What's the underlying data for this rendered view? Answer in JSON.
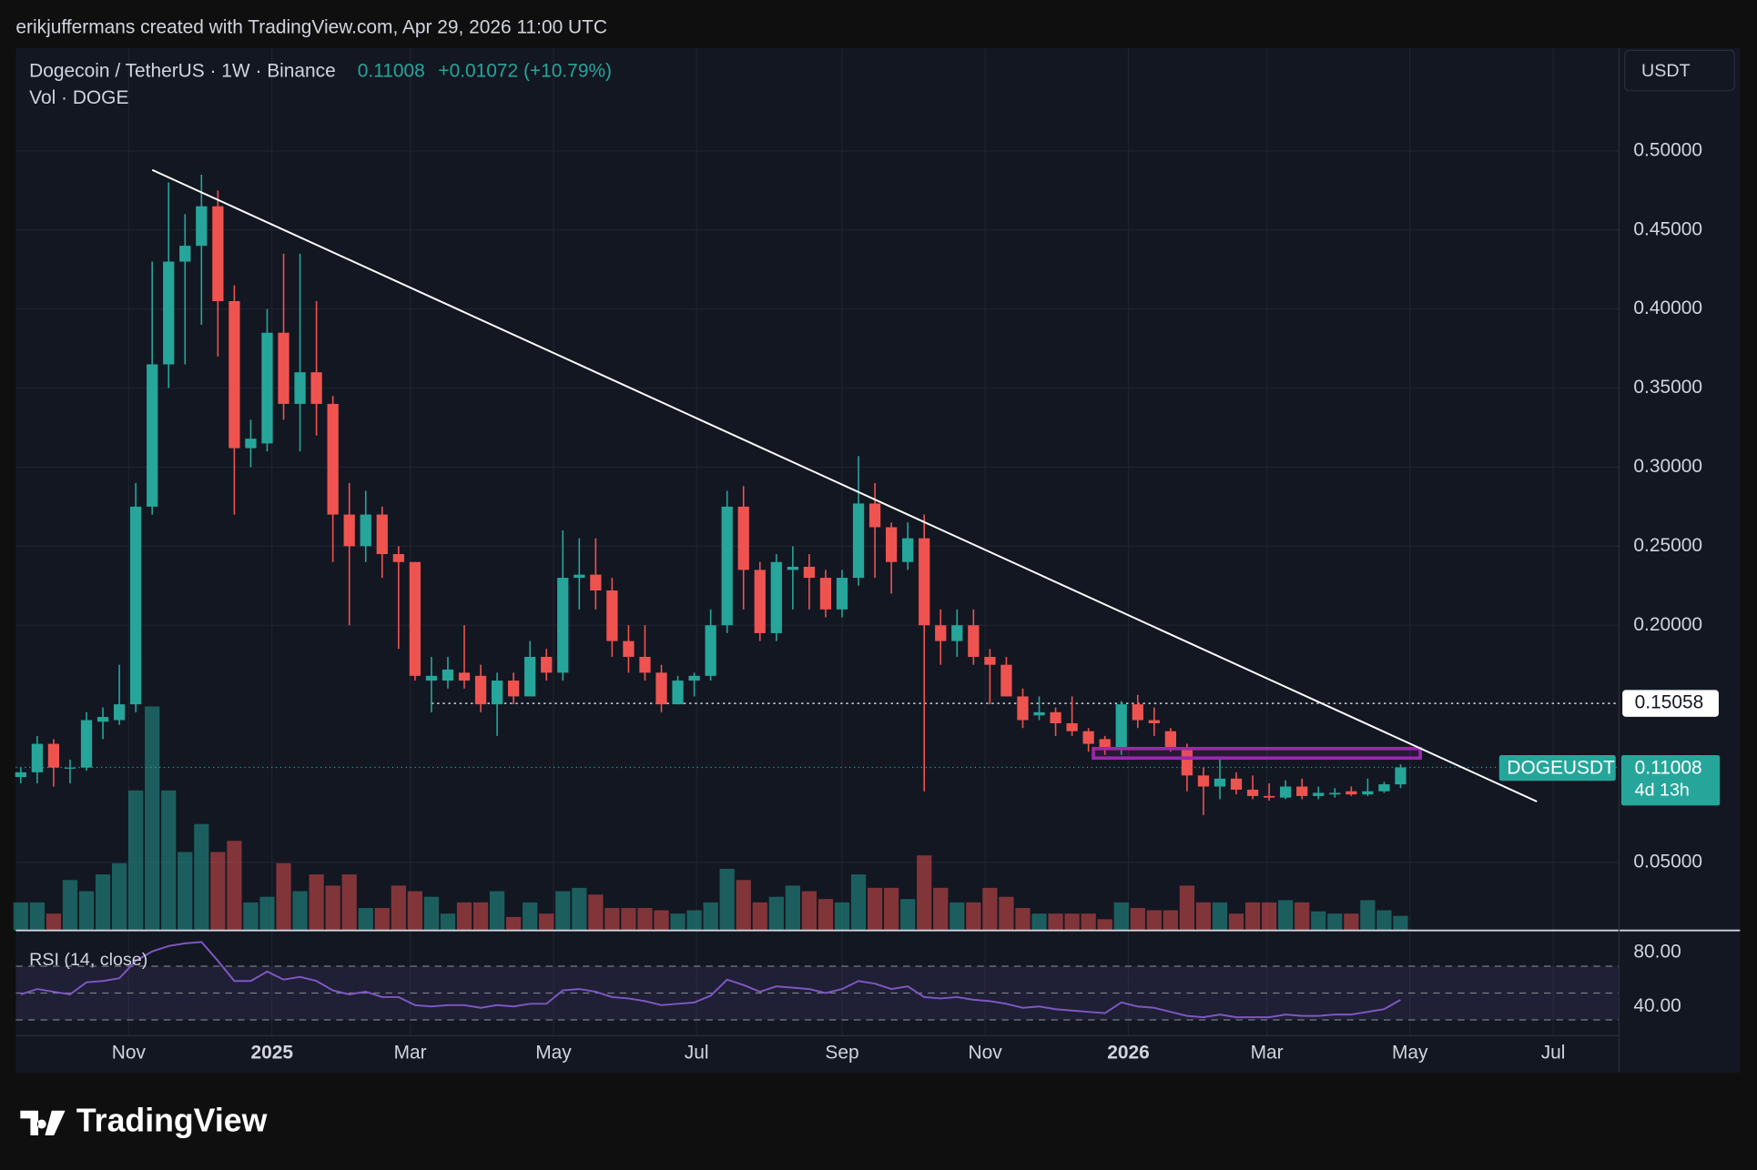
{
  "header": {
    "attribution": "erikjuffermans created with TradingView.com, Apr 29, 2026 11:00 UTC",
    "symbol": "Dogecoin / TetherUS · 1W · Binance",
    "change": "+0.01072 (+10.79%)",
    "volume_label": "Vol · DOGE",
    "currency": "USDT",
    "brand": "TradingView"
  },
  "chart_data": [
    {
      "type": "candlestick",
      "up_color": "#26a69a",
      "down_color": "#ef5350",
      "xlim": [
        -0.3,
        97.3
      ],
      "xticks": [
        {
          "value": 6.57,
          "label": "Nov"
        },
        {
          "value": 15.29,
          "label": "2025"
        },
        {
          "value": 23.71,
          "label": "Mar"
        },
        {
          "value": 32.43,
          "label": "May"
        },
        {
          "value": 41.14,
          "label": "Jul"
        },
        {
          "value": 50.0,
          "label": "Sep"
        },
        {
          "value": 58.71,
          "label": "Nov"
        },
        {
          "value": 67.43,
          "label": "2026"
        },
        {
          "value": 75.86,
          "label": "Mar"
        },
        {
          "value": 84.57,
          "label": "May"
        },
        {
          "value": 93.29,
          "label": "Jul"
        }
      ],
      "ylim": [
        0.007,
        0.565
      ],
      "yticks": [
        {
          "value": 0.05,
          "label": "0.05000"
        },
        {
          "value": 0.2,
          "label": "0.20000"
        },
        {
          "value": 0.25,
          "label": "0.25000"
        },
        {
          "value": 0.3,
          "label": "0.30000"
        },
        {
          "value": 0.35,
          "label": "0.35000"
        },
        {
          "value": 0.4,
          "label": "0.40000"
        },
        {
          "value": 0.45,
          "label": "0.45000"
        },
        {
          "value": 0.5,
          "label": "0.50000"
        }
      ],
      "grid": true,
      "open": [
        0.104,
        0.107,
        0.125,
        0.11,
        0.11,
        0.139,
        0.14,
        0.15,
        0.275,
        0.365,
        0.43,
        0.44,
        0.465,
        0.405,
        0.312,
        0.315,
        0.385,
        0.34,
        0.36,
        0.34,
        0.27,
        0.25,
        0.27,
        0.245,
        0.24,
        0.165,
        0.165,
        0.17,
        0.168,
        0.15,
        0.165,
        0.155,
        0.18,
        0.17,
        0.23,
        0.232,
        0.222,
        0.19,
        0.18,
        0.17,
        0.15,
        0.165,
        0.168,
        0.2,
        0.275,
        0.235,
        0.195,
        0.235,
        0.237,
        0.23,
        0.21,
        0.23,
        0.277,
        0.262,
        0.24,
        0.255,
        0.2,
        0.19,
        0.2,
        0.18,
        0.175,
        0.155,
        0.143,
        0.145,
        0.138,
        0.133,
        0.128,
        0.122,
        0.15,
        0.14,
        0.133,
        0.122,
        0.105,
        0.098,
        0.103,
        0.096,
        0.092,
        0.091,
        0.098,
        0.092,
        0.093,
        0.095,
        0.093,
        0.095,
        0.09936
      ],
      "high": [
        0.11,
        0.13,
        0.128,
        0.115,
        0.145,
        0.148,
        0.175,
        0.29,
        0.43,
        0.48,
        0.46,
        0.485,
        0.475,
        0.415,
        0.33,
        0.4,
        0.435,
        0.435,
        0.405,
        0.345,
        0.29,
        0.285,
        0.275,
        0.25,
        0.24,
        0.18,
        0.18,
        0.2,
        0.175,
        0.17,
        0.17,
        0.19,
        0.185,
        0.26,
        0.255,
        0.255,
        0.23,
        0.2,
        0.2,
        0.175,
        0.168,
        0.17,
        0.21,
        0.285,
        0.288,
        0.24,
        0.245,
        0.25,
        0.245,
        0.235,
        0.235,
        0.307,
        0.29,
        0.265,
        0.265,
        0.27,
        0.21,
        0.21,
        0.21,
        0.185,
        0.18,
        0.16,
        0.155,
        0.148,
        0.155,
        0.135,
        0.13,
        0.152,
        0.156,
        0.148,
        0.135,
        0.125,
        0.11,
        0.115,
        0.107,
        0.105,
        0.1,
        0.102,
        0.103,
        0.098,
        0.097,
        0.098,
        0.103,
        0.101,
        0.112
      ],
      "low": [
        0.1,
        0.1,
        0.098,
        0.1,
        0.108,
        0.128,
        0.137,
        0.145,
        0.27,
        0.35,
        0.365,
        0.39,
        0.37,
        0.27,
        0.3,
        0.31,
        0.33,
        0.31,
        0.32,
        0.24,
        0.2,
        0.24,
        0.23,
        0.185,
        0.165,
        0.145,
        0.16,
        0.16,
        0.145,
        0.13,
        0.15,
        0.155,
        0.165,
        0.165,
        0.21,
        0.21,
        0.18,
        0.17,
        0.165,
        0.145,
        0.15,
        0.155,
        0.165,
        0.195,
        0.21,
        0.19,
        0.19,
        0.21,
        0.21,
        0.205,
        0.205,
        0.225,
        0.23,
        0.22,
        0.235,
        0.095,
        0.175,
        0.18,
        0.175,
        0.15,
        0.155,
        0.135,
        0.14,
        0.13,
        0.13,
        0.12,
        0.118,
        0.118,
        0.135,
        0.13,
        0.12,
        0.095,
        0.08,
        0.09,
        0.093,
        0.09,
        0.089,
        0.09,
        0.09,
        0.09,
        0.091,
        0.092,
        0.092,
        0.094,
        0.097
      ],
      "close": [
        0.107,
        0.125,
        0.11,
        0.11,
        0.14,
        0.142,
        0.15,
        0.275,
        0.365,
        0.43,
        0.44,
        0.465,
        0.405,
        0.312,
        0.318,
        0.385,
        0.34,
        0.36,
        0.34,
        0.27,
        0.25,
        0.27,
        0.245,
        0.24,
        0.168,
        0.168,
        0.172,
        0.165,
        0.15,
        0.165,
        0.155,
        0.18,
        0.17,
        0.23,
        0.232,
        0.222,
        0.19,
        0.18,
        0.17,
        0.15,
        0.165,
        0.168,
        0.2,
        0.275,
        0.235,
        0.195,
        0.24,
        0.237,
        0.23,
        0.21,
        0.23,
        0.277,
        0.262,
        0.24,
        0.255,
        0.2,
        0.19,
        0.2,
        0.18,
        0.175,
        0.155,
        0.14,
        0.145,
        0.138,
        0.133,
        0.125,
        0.122,
        0.15,
        0.14,
        0.138,
        0.122,
        0.105,
        0.098,
        0.103,
        0.096,
        0.092,
        0.091,
        0.098,
        0.092,
        0.094,
        0.094,
        0.093,
        0.095,
        0.0994,
        0.11008
      ],
      "volume": [
        5,
        5,
        3,
        9,
        7,
        10,
        12,
        25,
        40,
        25,
        14,
        19,
        14,
        16,
        5,
        6,
        12,
        7,
        10,
        8,
        10,
        4,
        4,
        8,
        7,
        6,
        3,
        5,
        5,
        7,
        2.4,
        5,
        3,
        7,
        7.6,
        6.4,
        4,
        4,
        4,
        3.6,
        3,
        3.6,
        5,
        11,
        9,
        5,
        6,
        8,
        7,
        5.6,
        5,
        10,
        7.6,
        7.6,
        5.6,
        13.4,
        7.6,
        5,
        5,
        7.6,
        6,
        4,
        3,
        3,
        3,
        3,
        2,
        5,
        4,
        3.6,
        3.6,
        8,
        5,
        5,
        3,
        5,
        5,
        5.4,
        5,
        3.4,
        3,
        3,
        5.4,
        3.6,
        2.6
      ],
      "trendline": {
        "color": "#ffffff",
        "x": [
          8,
          92.3
        ],
        "y": [
          0.488,
          0.0885
        ]
      },
      "zone": {
        "color": "#9c27b0",
        "x": [
          65.3,
          85.2
        ],
        "y": [
          0.116,
          0.122
        ]
      },
      "hline": {
        "value": 0.15058,
        "label": "0.15058"
      },
      "price_label": {
        "name": "DOGEUSDT",
        "value": 0.11008,
        "label": "0.11008",
        "countdown": "4d 13h"
      }
    },
    {
      "type": "line",
      "title": "RSI (14, close)",
      "color": "#7e57c2",
      "ylim": [
        18.3,
        95.8
      ],
      "yticks": [
        {
          "value": 80,
          "label": "80.00"
        },
        {
          "value": 40,
          "label": "40.00"
        }
      ],
      "bands": [
        70,
        50,
        30
      ],
      "values": [
        49,
        53,
        51,
        49,
        58,
        59,
        61,
        74,
        81,
        85,
        87,
        88,
        74,
        59,
        59,
        66,
        60,
        62,
        59,
        52,
        49,
        51,
        47,
        47,
        41,
        40,
        41,
        41,
        39,
        41,
        40,
        42,
        42,
        52,
        53,
        51,
        47,
        46,
        44,
        41,
        42,
        43,
        48,
        60,
        56,
        51,
        55,
        54,
        53,
        50,
        53,
        59,
        57,
        53,
        55,
        47,
        46,
        47,
        45,
        44,
        42,
        39,
        40,
        38,
        37,
        36,
        35,
        43,
        40,
        39,
        36,
        33,
        32,
        34,
        32,
        32,
        32,
        34,
        33,
        33,
        34,
        34,
        36,
        38,
        45
      ]
    }
  ]
}
